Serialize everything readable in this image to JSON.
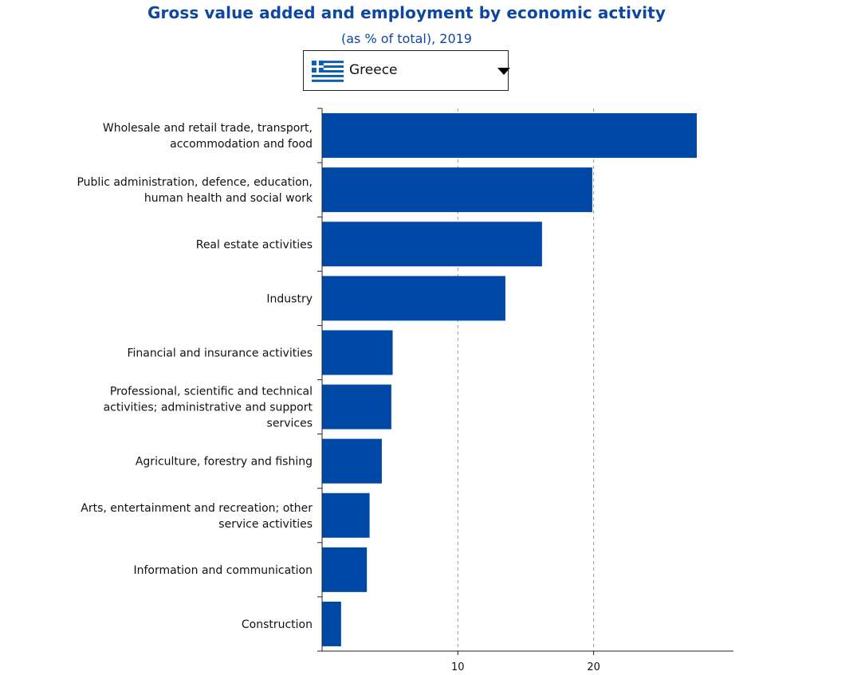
{
  "chart_data": {
    "type": "bar",
    "orientation": "horizontal",
    "title": "Gross value added and employment by economic activity",
    "subtitle": "(as % of total), 2019",
    "categories": [
      [
        "Wholesale and retail trade, transport,",
        "accommodation and food"
      ],
      [
        "Public administration, defence, education,",
        "human health and social work"
      ],
      [
        "Real estate activities"
      ],
      [
        "Industry"
      ],
      [
        "Financial and insurance activities"
      ],
      [
        "Professional, scientific and technical",
        "activities; administrative and support",
        "services"
      ],
      [
        "Agriculture, forestry and fishing"
      ],
      [
        "Arts, entertainment and recreation; other",
        "service activities"
      ],
      [
        "Information and communication"
      ],
      [
        "Construction"
      ]
    ],
    "values": [
      27.6,
      19.9,
      16.2,
      13.5,
      5.2,
      5.1,
      4.4,
      3.5,
      3.3,
      1.4
    ],
    "xlim": [
      0,
      30.3
    ],
    "xticks": [
      10,
      20
    ],
    "grid": "vertical dashed",
    "bar_color": "#0048a6"
  },
  "selector": {
    "country": "Greece",
    "flag_icon": "greece-flag-icon"
  }
}
